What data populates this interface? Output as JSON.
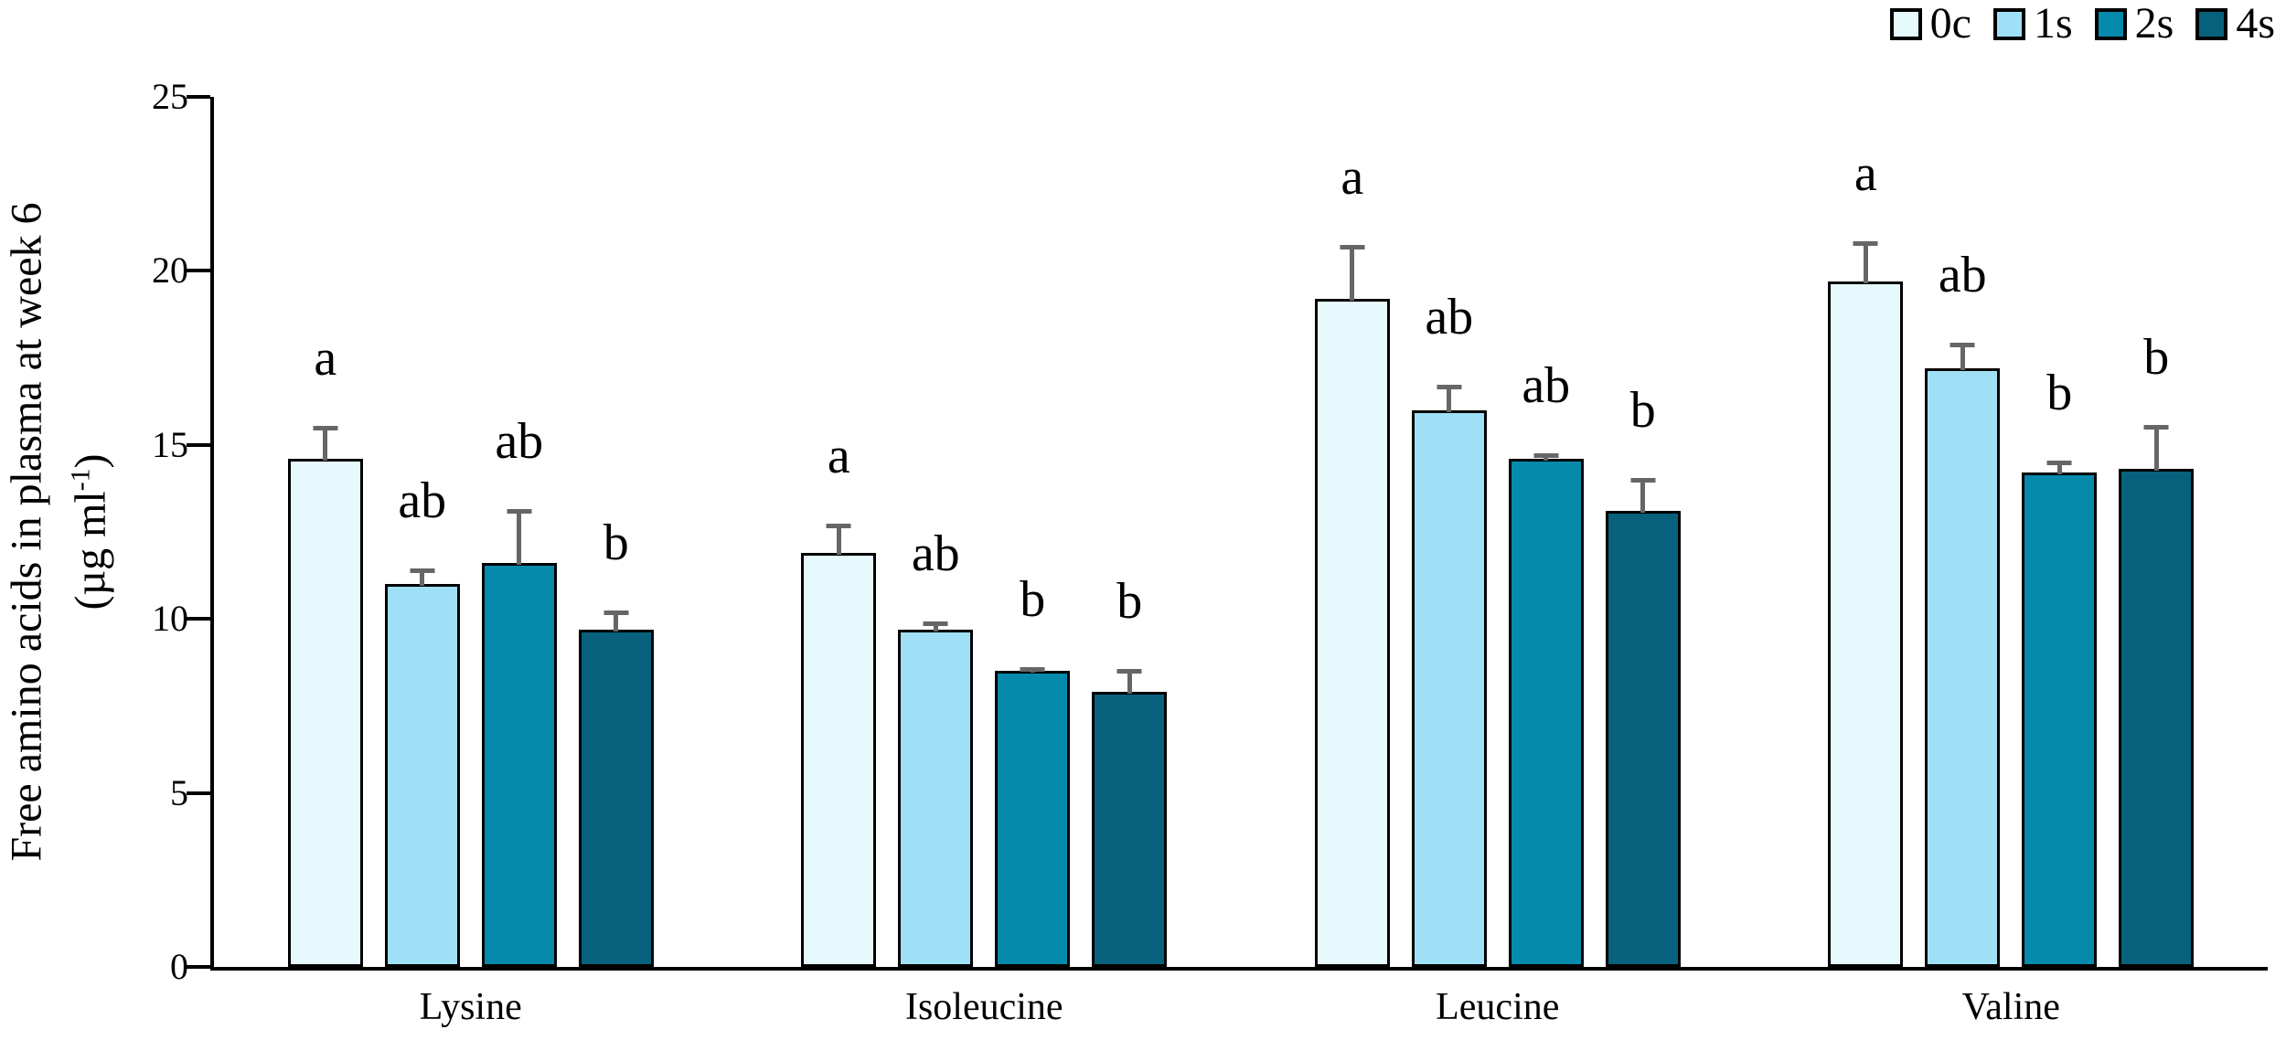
{
  "figure": {
    "background": "#ffffff",
    "axis_color": "#000000",
    "error_bar_color": "#666666"
  },
  "chart_data": {
    "type": "bar",
    "title": "",
    "ylabel_line1": "Free amino acids in plasma at week 6",
    "ylabel_unit_prefix": "(µg ml",
    "ylabel_unit_sup": "-1",
    "ylabel_unit_suffix": ")",
    "xlabel": "",
    "categories": [
      "Lysine",
      "Isoleucine",
      "Leucine",
      "Valine"
    ],
    "series": [
      {
        "name": "0c",
        "color": "#e6f9fd",
        "values": [
          14.6,
          11.9,
          19.2,
          19.7
        ],
        "errors": [
          1.0,
          0.9,
          1.6,
          1.2
        ],
        "sig_letters": [
          "a",
          "a",
          "a",
          "a"
        ]
      },
      {
        "name": "1s",
        "color": "#9fe0f7",
        "values": [
          11.0,
          9.7,
          16.0,
          17.2
        ],
        "errors": [
          0.5,
          0.3,
          0.8,
          0.8
        ],
        "sig_letters": [
          "ab",
          "ab",
          "ab",
          "ab"
        ]
      },
      {
        "name": "2s",
        "color": "#058aac",
        "values": [
          11.6,
          8.5,
          14.6,
          14.2
        ],
        "errors": [
          1.6,
          0.15,
          0.2,
          0.4
        ],
        "sig_letters": [
          "ab",
          "b",
          "ab",
          "b"
        ]
      },
      {
        "name": "4s",
        "color": "#07617c",
        "values": [
          9.7,
          7.9,
          13.1,
          14.3
        ],
        "errors": [
          0.6,
          0.7,
          1.0,
          1.3
        ],
        "sig_letters": [
          "b",
          "b",
          "b",
          "b"
        ]
      }
    ],
    "y_axis": {
      "min": 0,
      "max": 25,
      "tick_step": 5,
      "ticks": [
        0,
        5,
        10,
        15,
        20,
        25
      ]
    },
    "legend_position": "top-right",
    "grid": false,
    "error_bars": "upper only"
  }
}
